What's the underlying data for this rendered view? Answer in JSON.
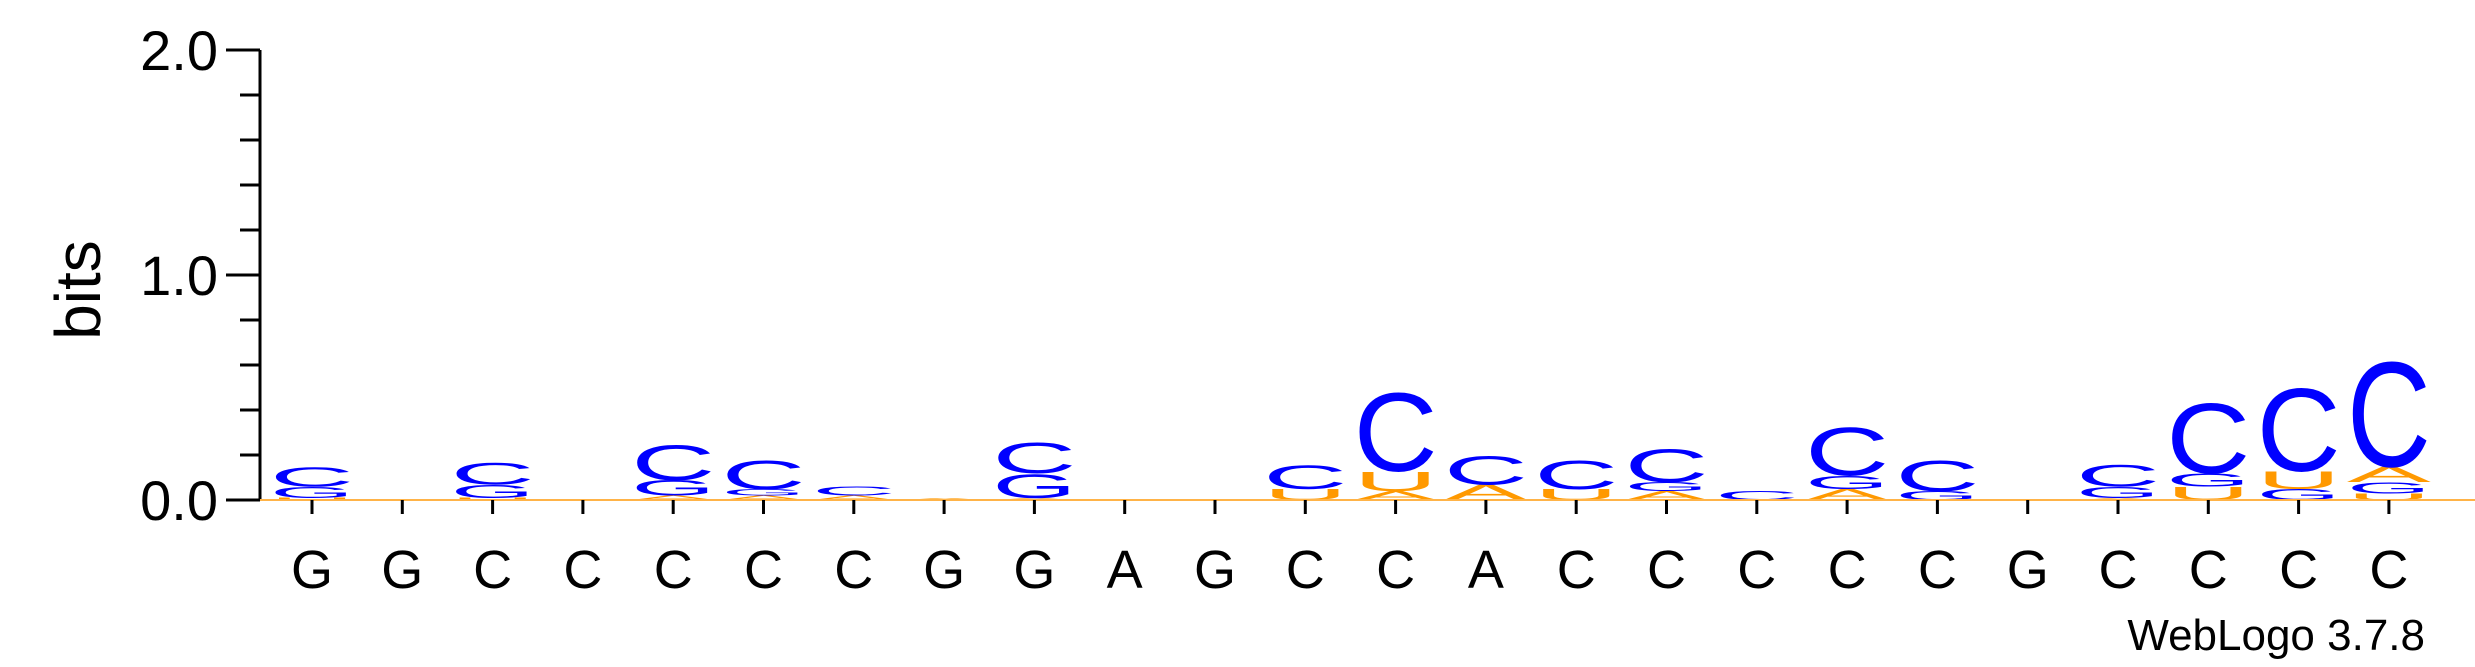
{
  "chart_data": {
    "type": "sequence-logo",
    "ylabel": "bits",
    "ylim": [
      0,
      2.0
    ],
    "yticks": [
      "0.0",
      "1.0",
      "2.0"
    ],
    "positions": [
      "G",
      "G",
      "C",
      "C",
      "C",
      "C",
      "C",
      "G",
      "G",
      "A",
      "G",
      "C",
      "C",
      "A",
      "C",
      "C",
      "C",
      "C",
      "C",
      "G",
      "C",
      "C",
      "C",
      "C"
    ],
    "colors": {
      "C": "#0000ff",
      "G": "#0000ff",
      "U": "#ff9900",
      "A": "#ff9900"
    },
    "stacks": [
      [
        {
          "l": "U",
          "h": 0.01
        },
        {
          "l": "G",
          "h": 0.05
        },
        {
          "l": "C",
          "h": 0.09
        }
      ],
      [],
      [
        {
          "l": "U",
          "h": 0.01
        },
        {
          "l": "G",
          "h": 0.06
        },
        {
          "l": "C",
          "h": 0.1
        }
      ],
      [],
      [
        {
          "l": "A",
          "h": 0.02
        },
        {
          "l": "G",
          "h": 0.07
        },
        {
          "l": "C",
          "h": 0.16
        }
      ],
      [
        {
          "l": "A",
          "h": 0.02
        },
        {
          "l": "G",
          "h": 0.03
        },
        {
          "l": "C",
          "h": 0.13
        }
      ],
      [
        {
          "l": "A",
          "h": 0.02
        },
        {
          "l": "C",
          "h": 0.04
        }
      ],
      [
        {
          "l": "A",
          "h": 0.01
        }
      ],
      [
        {
          "l": "A",
          "h": 0.01
        },
        {
          "l": "G",
          "h": 0.11
        },
        {
          "l": "C",
          "h": 0.14
        }
      ],
      [],
      [],
      [
        {
          "l": "U",
          "h": 0.05
        },
        {
          "l": "C",
          "h": 0.11
        }
      ],
      [
        {
          "l": "A",
          "h": 0.04
        },
        {
          "l": "U",
          "h": 0.09
        },
        {
          "l": "C",
          "h": 0.36
        }
      ],
      [
        {
          "l": "A",
          "h": 0.07
        },
        {
          "l": "C",
          "h": 0.13
        }
      ],
      [
        {
          "l": "U",
          "h": 0.05
        },
        {
          "l": "C",
          "h": 0.13
        }
      ],
      [
        {
          "l": "A",
          "h": 0.04
        },
        {
          "l": "G",
          "h": 0.04
        },
        {
          "l": "C",
          "h": 0.15
        }
      ],
      [
        {
          "l": "C",
          "h": 0.04
        }
      ],
      [
        {
          "l": "A",
          "h": 0.05
        },
        {
          "l": "G",
          "h": 0.06
        },
        {
          "l": "C",
          "h": 0.22
        }
      ],
      [
        {
          "l": "G",
          "h": 0.04
        },
        {
          "l": "C",
          "h": 0.14
        }
      ],
      [],
      [
        {
          "l": "A",
          "h": 0.01
        },
        {
          "l": "G",
          "h": 0.05
        },
        {
          "l": "C",
          "h": 0.1
        }
      ],
      [
        {
          "l": "U",
          "h": 0.06
        },
        {
          "l": "G",
          "h": 0.06
        },
        {
          "l": "C",
          "h": 0.32
        }
      ],
      [
        {
          "l": "G",
          "h": 0.05
        },
        {
          "l": "U",
          "h": 0.08
        },
        {
          "l": "C",
          "h": 0.38
        }
      ],
      [
        {
          "l": "U",
          "h": 0.03
        },
        {
          "l": "G",
          "h": 0.05
        },
        {
          "l": "A",
          "h": 0.07
        },
        {
          "l": "C",
          "h": 0.48
        }
      ]
    ]
  },
  "credit": "WebLogo 3.7.8"
}
